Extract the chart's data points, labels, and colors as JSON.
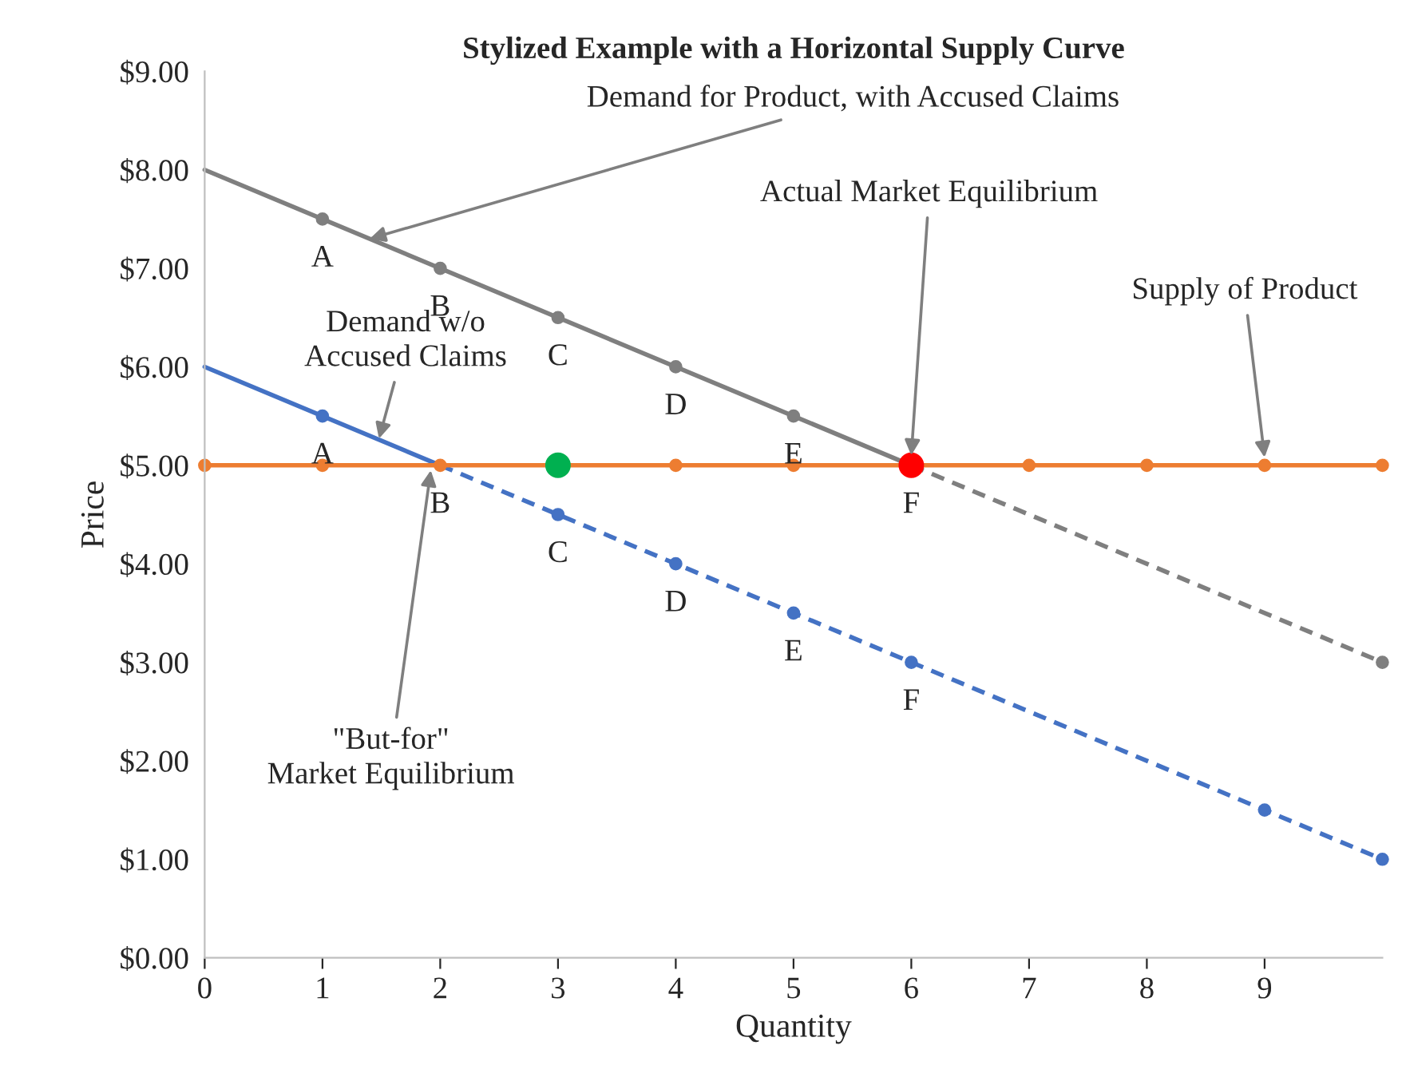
{
  "chart_data": {
    "type": "line",
    "title": "Stylized Example with a Horizontal Supply Curve",
    "xlabel": "Quantity",
    "ylabel": "Price",
    "xlim": [
      0,
      10
    ],
    "xticks": [
      0,
      1,
      2,
      3,
      4,
      5,
      6,
      7,
      8,
      9
    ],
    "ylim": [
      0,
      9
    ],
    "yticks": [
      {
        "value": 0,
        "label": "$0.00"
      },
      {
        "value": 1,
        "label": "$1.00"
      },
      {
        "value": 2,
        "label": "$2.00"
      },
      {
        "value": 3,
        "label": "$3.00"
      },
      {
        "value": 4,
        "label": "$4.00"
      },
      {
        "value": 5,
        "label": "$5.00"
      },
      {
        "value": 6,
        "label": "$6.00"
      },
      {
        "value": 7,
        "label": "$7.00"
      },
      {
        "value": 8,
        "label": "$8.00"
      },
      {
        "value": 9,
        "label": "$9.00"
      }
    ],
    "grid": false,
    "legend": false,
    "series": [
      {
        "color": "#7f7f7f",
        "line_style": "solid",
        "marker": "none",
        "x": [
          0,
          6
        ],
        "values": [
          8,
          5
        ]
      },
      {
        "color": "#7f7f7f",
        "line_style": "dashed",
        "marker": "none",
        "x": [
          6,
          10
        ],
        "values": [
          5,
          3
        ]
      },
      {
        "type": "scatter",
        "color": "#7f7f7f",
        "marker": "circle",
        "x": [
          1,
          2,
          3,
          4,
          5,
          10
        ],
        "values": [
          7.5,
          7,
          6.5,
          6,
          5.5,
          3
        ]
      },
      {
        "color": "#4472c4",
        "line_style": "solid",
        "marker": "none",
        "x": [
          0,
          2
        ],
        "values": [
          6,
          5
        ]
      },
      {
        "color": "#4472c4",
        "line_style": "dashed",
        "marker": "none",
        "x": [
          2,
          10
        ],
        "values": [
          5,
          1
        ]
      },
      {
        "type": "scatter",
        "color": "#4472c4",
        "marker": "circle",
        "x": [
          1,
          3,
          4,
          5,
          6,
          9,
          10
        ],
        "values": [
          5.5,
          4.5,
          4,
          3.5,
          3,
          1.5,
          1
        ]
      },
      {
        "color": "#ed7d31",
        "line_style": "solid",
        "marker": "circle",
        "x": [
          0,
          1,
          2,
          3,
          4,
          5,
          6,
          7,
          8,
          9,
          10
        ],
        "values": [
          5,
          5,
          5,
          5,
          5,
          5,
          5,
          5,
          5,
          5,
          5
        ]
      },
      {
        "type": "scatter",
        "color": "#00b050",
        "marker": "circle",
        "x": [
          3
        ],
        "values": [
          5
        ]
      },
      {
        "type": "scatter",
        "color": "#ff0000",
        "marker": "circle",
        "x": [
          6
        ],
        "values": [
          5
        ]
      }
    ],
    "annotations": [
      {
        "text": "A",
        "x": 1,
        "y": 7.5
      },
      {
        "text": "B",
        "x": 2,
        "y": 7
      },
      {
        "text": "C",
        "x": 3,
        "y": 6.5
      },
      {
        "text": "D",
        "x": 4,
        "y": 6
      },
      {
        "text": "E",
        "x": 5,
        "y": 5.5
      },
      {
        "text": "F",
        "x": 6,
        "y": 5
      },
      {
        "text": "A",
        "x": 1,
        "y": 5.5
      },
      {
        "text": "B",
        "x": 2,
        "y": 5
      },
      {
        "text": "C",
        "x": 3,
        "y": 4.5
      },
      {
        "text": "D",
        "x": 4,
        "y": 4
      },
      {
        "text": "E",
        "x": 5,
        "y": 3.5
      },
      {
        "text": "F",
        "x": 6,
        "y": 3
      },
      {
        "text": "Demand for Product, with Accused Claims",
        "x": 1.4,
        "y": 7.3
      },
      {
        "text": "Demand w/o\nAccused Claims",
        "x": 1.48,
        "y": 5.27
      },
      {
        "text": "Actual Market Equilibrium",
        "x": 6,
        "y": 5.1
      },
      {
        "text": "Supply of Product",
        "x": 9,
        "y": 5.08
      },
      {
        "text": "\"But-for\"\nMarket Equilibrium",
        "x": 1.92,
        "y": 4.95
      }
    ]
  }
}
